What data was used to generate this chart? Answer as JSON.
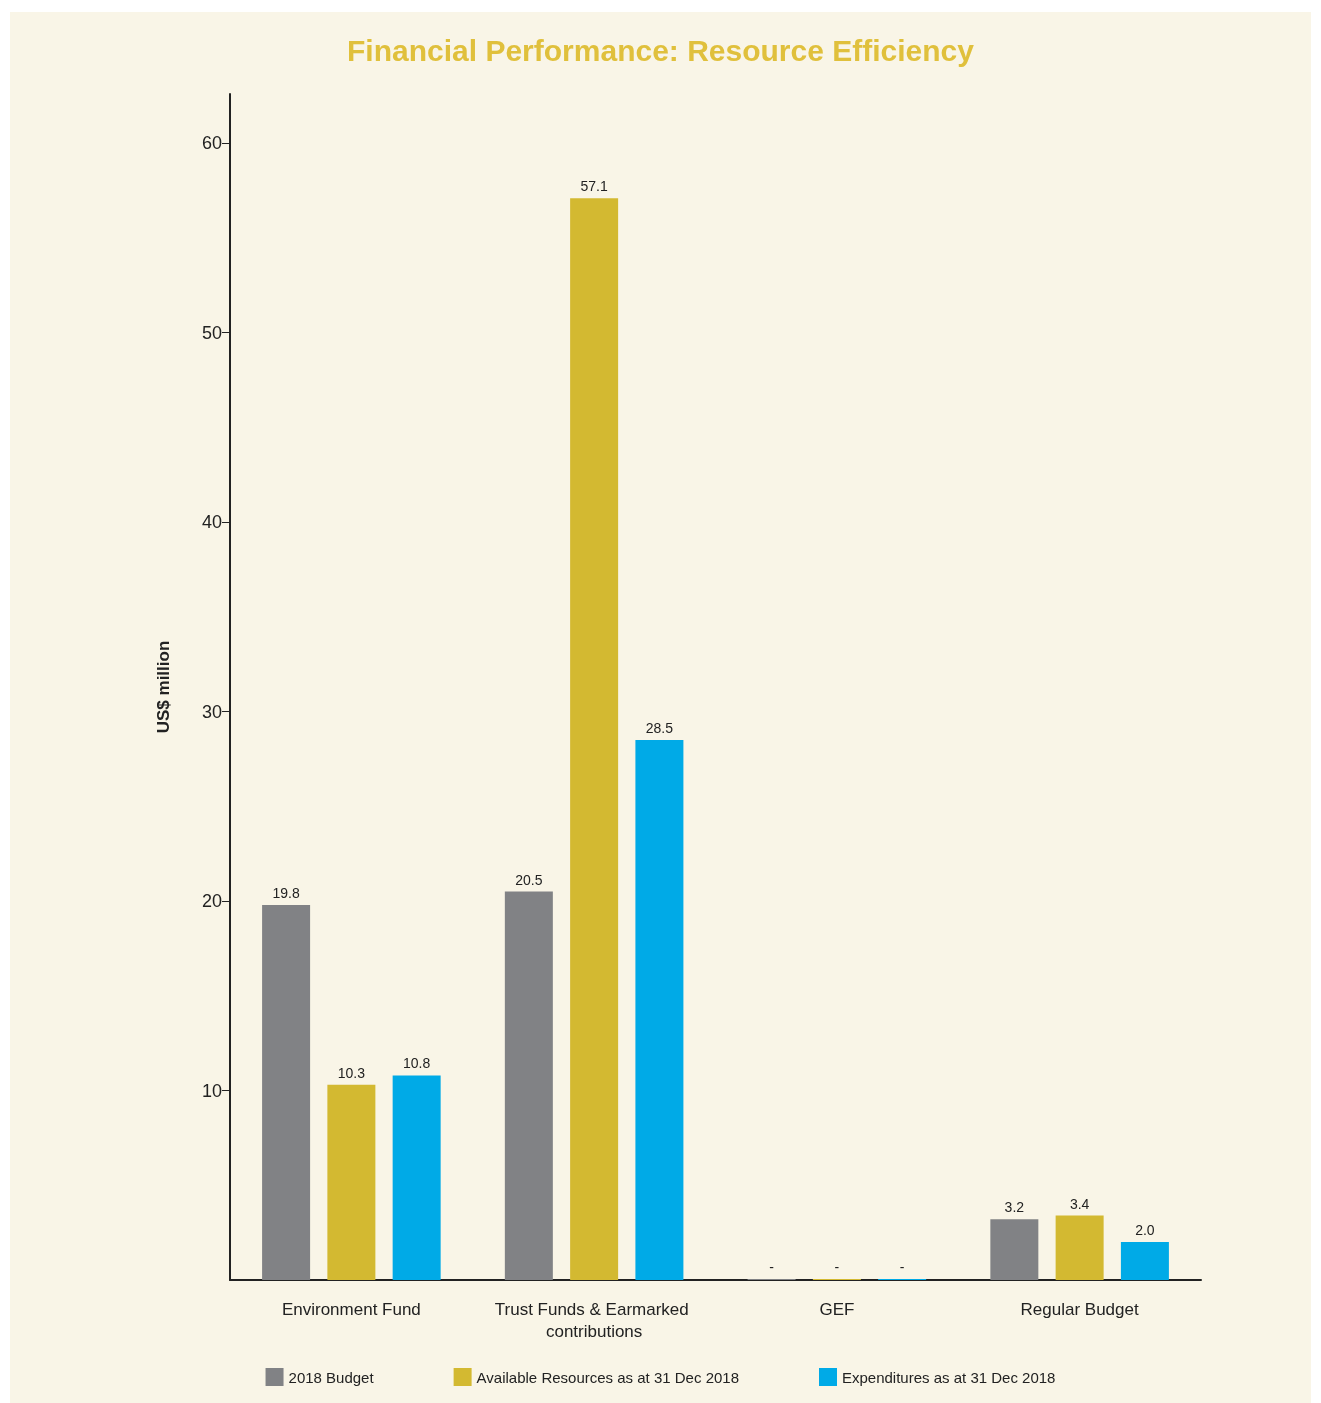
{
  "chart_data": {
    "type": "bar",
    "title": "Financial Performance: Resource Efficiency",
    "ylabel": "US$ million",
    "categories": [
      "Environment Fund",
      "Trust Funds & Earmarked contributions",
      "GEF",
      "Regular Budget"
    ],
    "series": [
      {
        "name": "2018 Budget",
        "color": "#818285",
        "values": [
          19.8,
          20.5,
          0,
          3.2
        ],
        "value_labels": [
          "19.8",
          "20.5",
          "-",
          "3.2"
        ]
      },
      {
        "name": "Available Resources as at 31 Dec 2018",
        "color": "#d3b931",
        "values": [
          10.3,
          57.1,
          0,
          3.4
        ],
        "value_labels": [
          "10.3",
          "57.1",
          "-",
          "3.4"
        ]
      },
      {
        "name": "Expenditures as at 31 Dec 2018",
        "color": "#00aae7",
        "values": [
          10.8,
          28.5,
          0,
          2.0
        ],
        "value_labels": [
          "10.8",
          "28.5",
          "-",
          "2.0"
        ]
      }
    ],
    "ylim": [
      0,
      62.6
    ],
    "yticks": [
      10,
      20,
      30,
      40,
      50,
      60
    ],
    "grid": false,
    "legend": "bottom"
  }
}
